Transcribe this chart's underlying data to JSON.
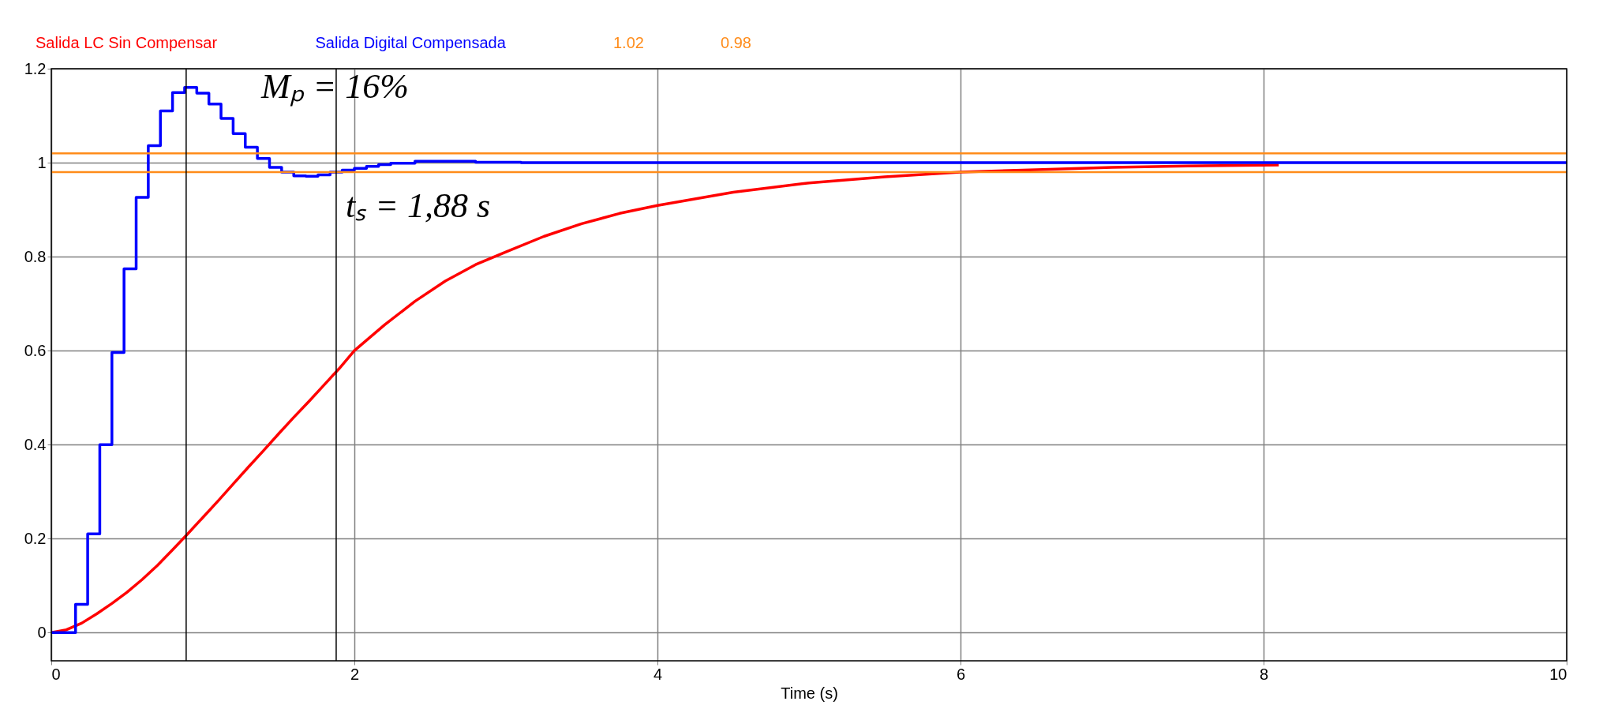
{
  "chart_data": {
    "type": "line",
    "xlabel": "Time (s)",
    "xlim": [
      0,
      10
    ],
    "ylim": [
      -0.06,
      1.2
    ],
    "xticks": [
      0,
      2,
      4,
      6,
      8,
      10
    ],
    "yticks": [
      0,
      0.2,
      0.4,
      0.6,
      0.8,
      1,
      1.2
    ],
    "grid": true,
    "legend": "top",
    "marker": "none",
    "line_style": "solid",
    "series": [
      {
        "name": "Salida LC Sin Compensar",
        "color": "#ff0000",
        "type": "line",
        "x": [
          0,
          0.1,
          0.2,
          0.3,
          0.4,
          0.5,
          0.6,
          0.7,
          0.8,
          0.9,
          1.0,
          1.1,
          1.2,
          1.3,
          1.4,
          1.5,
          1.6,
          1.7,
          1.8,
          1.9,
          2.0,
          2.2,
          2.4,
          2.6,
          2.8,
          3.0,
          3.25,
          3.5,
          3.75,
          4.0,
          4.5,
          5.0,
          5.5,
          6.0,
          6.5,
          7.0,
          7.5,
          8.1
        ],
        "values": [
          0,
          0.006,
          0.02,
          0.04,
          0.062,
          0.086,
          0.113,
          0.143,
          0.176,
          0.21,
          0.245,
          0.28,
          0.316,
          0.352,
          0.387,
          0.423,
          0.458,
          0.492,
          0.527,
          0.562,
          0.6,
          0.655,
          0.705,
          0.748,
          0.783,
          0.81,
          0.843,
          0.87,
          0.892,
          0.909,
          0.937,
          0.957,
          0.97,
          0.98,
          0.985,
          0.99,
          0.993,
          0.995
        ]
      },
      {
        "name": "Salida Digital Compensada",
        "color": "#0000ff",
        "type": "step",
        "x": [
          0,
          0.16,
          0.24,
          0.32,
          0.4,
          0.48,
          0.56,
          0.64,
          0.72,
          0.8,
          0.88,
          0.96,
          1.04,
          1.12,
          1.2,
          1.28,
          1.36,
          1.44,
          1.52,
          1.6,
          1.68,
          1.76,
          1.84,
          1.92,
          2.0,
          2.08,
          2.16,
          2.24,
          2.4,
          2.8,
          3.1,
          10
        ],
        "values": [
          0,
          0.06,
          0.21,
          0.4,
          0.596,
          0.774,
          0.926,
          1.036,
          1.11,
          1.149,
          1.16,
          1.148,
          1.125,
          1.094,
          1.062,
          1.033,
          1.009,
          0.99,
          0.98,
          0.972,
          0.971,
          0.974,
          0.98,
          0.984,
          0.988,
          0.992,
          0.996,
          0.999,
          1.003,
          1.001,
          1.0,
          1.0
        ]
      }
    ],
    "ref_lines": [
      {
        "axis": "y",
        "value": 1.02,
        "label": "1.02",
        "color": "#ff8c1a"
      },
      {
        "axis": "y",
        "value": 0.98,
        "label": "0.98",
        "color": "#ff8c1a"
      },
      {
        "axis": "x",
        "value": 0.89,
        "color": "#000000"
      },
      {
        "axis": "x",
        "value": 1.88,
        "color": "#000000"
      }
    ],
    "annotations": [
      {
        "text": "Mₚ = 16%",
        "x": 0.89,
        "y": 1.16
      },
      {
        "text": "tₛ = 1,88 s",
        "x": 1.88,
        "y": 0.98
      }
    ]
  }
}
